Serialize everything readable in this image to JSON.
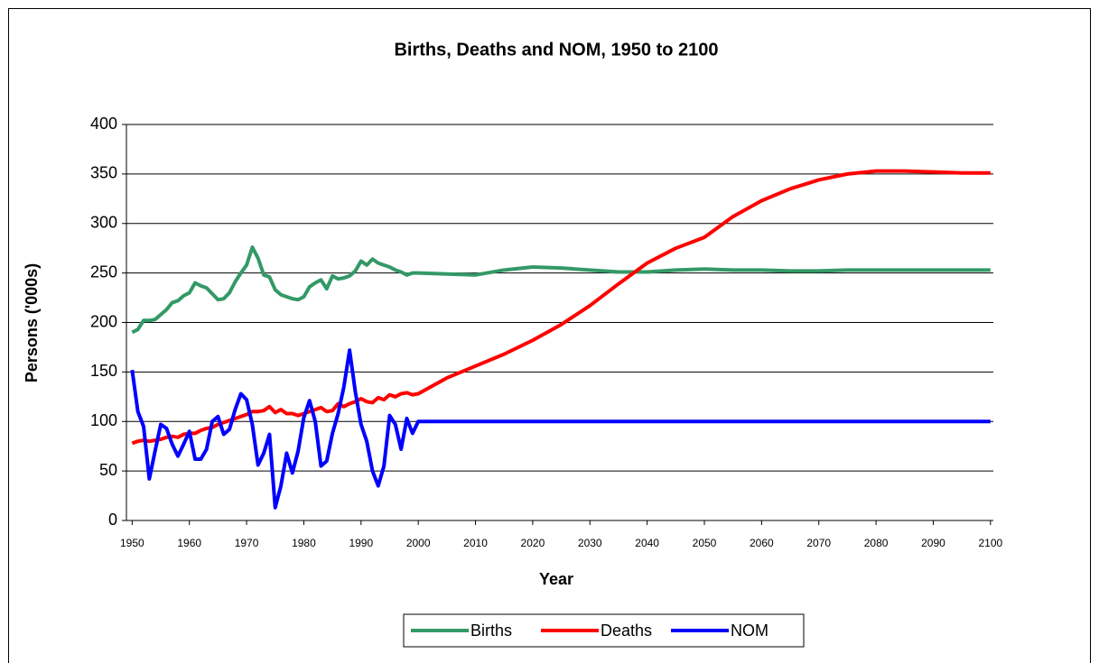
{
  "chart_data": {
    "type": "line",
    "title": "Births, Deaths and NOM, 1950 to 2100",
    "x_label": "Year",
    "y_label": "Persons ('000s)",
    "x": [
      1950,
      1951,
      1952,
      1953,
      1954,
      1955,
      1956,
      1957,
      1958,
      1959,
      1960,
      1961,
      1962,
      1963,
      1964,
      1965,
      1966,
      1967,
      1968,
      1969,
      1970,
      1971,
      1972,
      1973,
      1974,
      1975,
      1976,
      1977,
      1978,
      1979,
      1980,
      1981,
      1982,
      1983,
      1984,
      1985,
      1986,
      1987,
      1988,
      1989,
      1990,
      1991,
      1992,
      1993,
      1994,
      1995,
      1996,
      1997,
      1998,
      1999,
      2000,
      2005,
      2010,
      2015,
      2020,
      2025,
      2030,
      2035,
      2040,
      2045,
      2050,
      2055,
      2060,
      2065,
      2070,
      2075,
      2080,
      2085,
      2090,
      2095,
      2100
    ],
    "series": [
      {
        "name": "Births",
        "color": "#339966",
        "values": [
          190,
          193,
          202,
          202,
          203,
          208,
          213,
          220,
          222,
          227,
          230,
          240,
          237,
          235,
          229,
          223,
          224,
          230,
          241,
          250,
          258,
          276,
          265,
          248,
          246,
          233,
          228,
          226,
          224,
          223,
          226,
          236,
          240,
          243,
          234,
          247,
          244,
          245,
          247,
          252,
          262,
          258,
          264,
          260,
          258,
          256,
          253,
          251,
          248,
          250,
          250,
          249,
          248,
          253,
          256,
          255,
          253,
          251,
          251,
          253,
          254,
          253,
          253,
          252,
          252,
          253,
          253,
          253,
          253,
          253,
          253
        ]
      },
      {
        "name": "Deaths",
        "color": "#ff0000",
        "values": [
          78,
          80,
          81,
          80,
          81,
          82,
          84,
          85,
          84,
          87,
          88,
          88,
          91,
          93,
          94,
          97,
          99,
          101,
          103,
          105,
          107,
          110,
          110,
          111,
          115,
          109,
          112,
          108,
          108,
          106,
          108,
          110,
          112,
          114,
          110,
          111,
          118,
          115,
          118,
          120,
          123,
          120,
          119,
          124,
          122,
          127,
          125,
          128,
          129,
          127,
          128,
          144,
          156,
          168,
          182,
          198,
          217,
          239,
          260,
          275,
          286,
          307,
          323,
          335,
          344,
          350,
          353,
          353,
          352,
          351,
          351
        ]
      },
      {
        "name": "NOM",
        "color": "#0000ff",
        "values": [
          152,
          110,
          95,
          42,
          70,
          97,
          93,
          77,
          65,
          77,
          90,
          62,
          62,
          72,
          100,
          105,
          87,
          92,
          112,
          128,
          122,
          97,
          56,
          68,
          87,
          13,
          35,
          68,
          48,
          70,
          104,
          121,
          100,
          55,
          60,
          88,
          108,
          135,
          172,
          130,
          97,
          80,
          50,
          35,
          55,
          106,
          97,
          72,
          103,
          88,
          100,
          100,
          100,
          100,
          100,
          100,
          100,
          100,
          100,
          100,
          100,
          100,
          100,
          100,
          100,
          100,
          100,
          100,
          100,
          100,
          100
        ]
      }
    ],
    "xlim": [
      1949,
      2100.5
    ],
    "xticks": [
      1950,
      1960,
      1970,
      1980,
      1990,
      2000,
      2010,
      2020,
      2030,
      2040,
      2050,
      2060,
      2070,
      2080,
      2090,
      2100
    ],
    "ylim": [
      0,
      400
    ],
    "yticks": [
      0,
      50,
      100,
      150,
      200,
      250,
      300,
      350,
      400
    ],
    "grid": true,
    "legend": "bottom"
  }
}
